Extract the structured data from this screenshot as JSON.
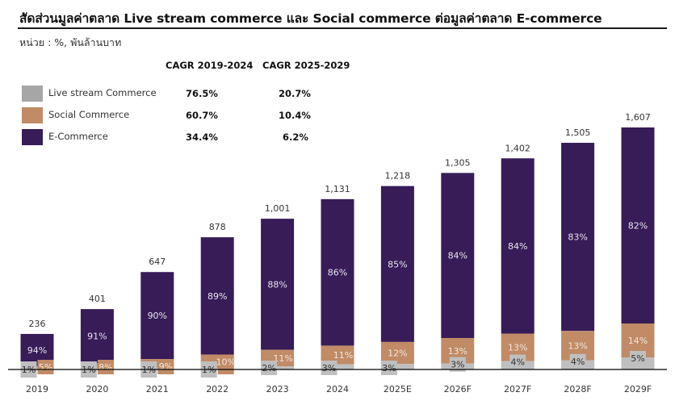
{
  "title": "สัดส่วนมูลค่าตลาด Live stream commerce และ Social commerce ต่อมูลค่าตลาด E-commerce",
  "unit": "หน่วย : %, พันล้านบาท",
  "cagr": {
    "headers": [
      "CAGR 2019-2024",
      "CAGR 2025-2029"
    ],
    "rows": [
      {
        "series": "Live stream Commerce",
        "values": [
          "76.5%",
          "20.7%"
        ]
      },
      {
        "series": "Social Commerce",
        "values": [
          "60.7%",
          "10.4%"
        ]
      },
      {
        "series": "E-Commerce",
        "values": [
          "34.4%",
          "6.2%"
        ]
      }
    ]
  },
  "colors": {
    "live_stream": "#bfbfbf",
    "live_stream_legend": "#a6a6a6",
    "social": "#c08b66",
    "ecommerce": "#371c58",
    "baseline": "#000000"
  },
  "chart_data": {
    "type": "bar",
    "stacked": true,
    "title": "สัดส่วนมูลค่าตลาด Live stream commerce และ Social commerce ต่อมูลค่าตลาด E-commerce",
    "subtitle": "หน่วย : %, พันล้านบาท",
    "xlabel": "",
    "ylabel": "",
    "ylim": [
      0,
      1607
    ],
    "grid": false,
    "legend": "top-left",
    "categories": [
      "2019",
      "2020",
      "2021",
      "2022",
      "2023",
      "2024",
      "2025E",
      "2026F",
      "2027F",
      "2028F",
      "2029F"
    ],
    "totals": [
      236,
      401,
      647,
      878,
      1001,
      1131,
      1218,
      1305,
      1402,
      1505,
      1607
    ],
    "total_labels": [
      "236",
      "401",
      "647",
      "878",
      "1,001",
      "1,131",
      "1,218",
      "1,305",
      "1,402",
      "1,505",
      "1,607"
    ],
    "series": [
      {
        "name": "Live stream Commerce",
        "values_pct": [
          1,
          1,
          1,
          1,
          2,
          3,
          3,
          3,
          4,
          4,
          5
        ],
        "labels": [
          "1%",
          "1%",
          "1%",
          "1%",
          "2%",
          "3%",
          "3%",
          "3%",
          "4%",
          "4%",
          "5%"
        ]
      },
      {
        "name": "Social Commerce",
        "values_pct": [
          5,
          8,
          9,
          10,
          11,
          11,
          12,
          13,
          13,
          13,
          14
        ],
        "labels": [
          "5%",
          "8%",
          "9%",
          "10%",
          "11%",
          "11%",
          "12%",
          "13%",
          "13%",
          "13%",
          "14%"
        ]
      },
      {
        "name": "E-Commerce",
        "values_pct": [
          94,
          91,
          90,
          89,
          88,
          86,
          85,
          84,
          84,
          83,
          82
        ],
        "labels": [
          "94%",
          "91%",
          "90%",
          "89%",
          "88%",
          "86%",
          "85%",
          "84%",
          "84%",
          "83%",
          "82%"
        ]
      }
    ]
  }
}
